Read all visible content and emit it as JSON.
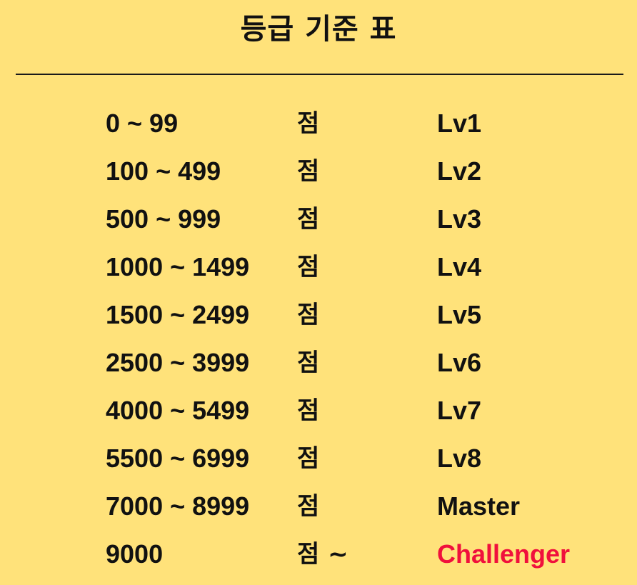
{
  "title": "등급 기준 표",
  "accent_color": "#F0103C",
  "background_color": "#FFE27A",
  "rows": [
    {
      "range": "0 ~ 99",
      "unit": "점",
      "grade": "Lv1"
    },
    {
      "range": "100 ~ 499",
      "unit": "점",
      "grade": "Lv2"
    },
    {
      "range": "500 ~ 999",
      "unit": "점",
      "grade": "Lv3"
    },
    {
      "range": "1000 ~ 1499",
      "unit": "점",
      "grade": "Lv4"
    },
    {
      "range": "1500 ~ 2499",
      "unit": "점",
      "grade": "Lv5"
    },
    {
      "range": "2500 ~ 3999",
      "unit": "점",
      "grade": "Lv6"
    },
    {
      "range": "4000 ~ 5499",
      "unit": "점",
      "grade": "Lv7"
    },
    {
      "range": "5500 ~ 6999",
      "unit": "점",
      "grade": "Lv8"
    },
    {
      "range": "7000 ~ 8999",
      "unit": "점",
      "grade": "Master"
    },
    {
      "range": "9000",
      "unit": "점 ~",
      "grade": "Challenger"
    }
  ]
}
